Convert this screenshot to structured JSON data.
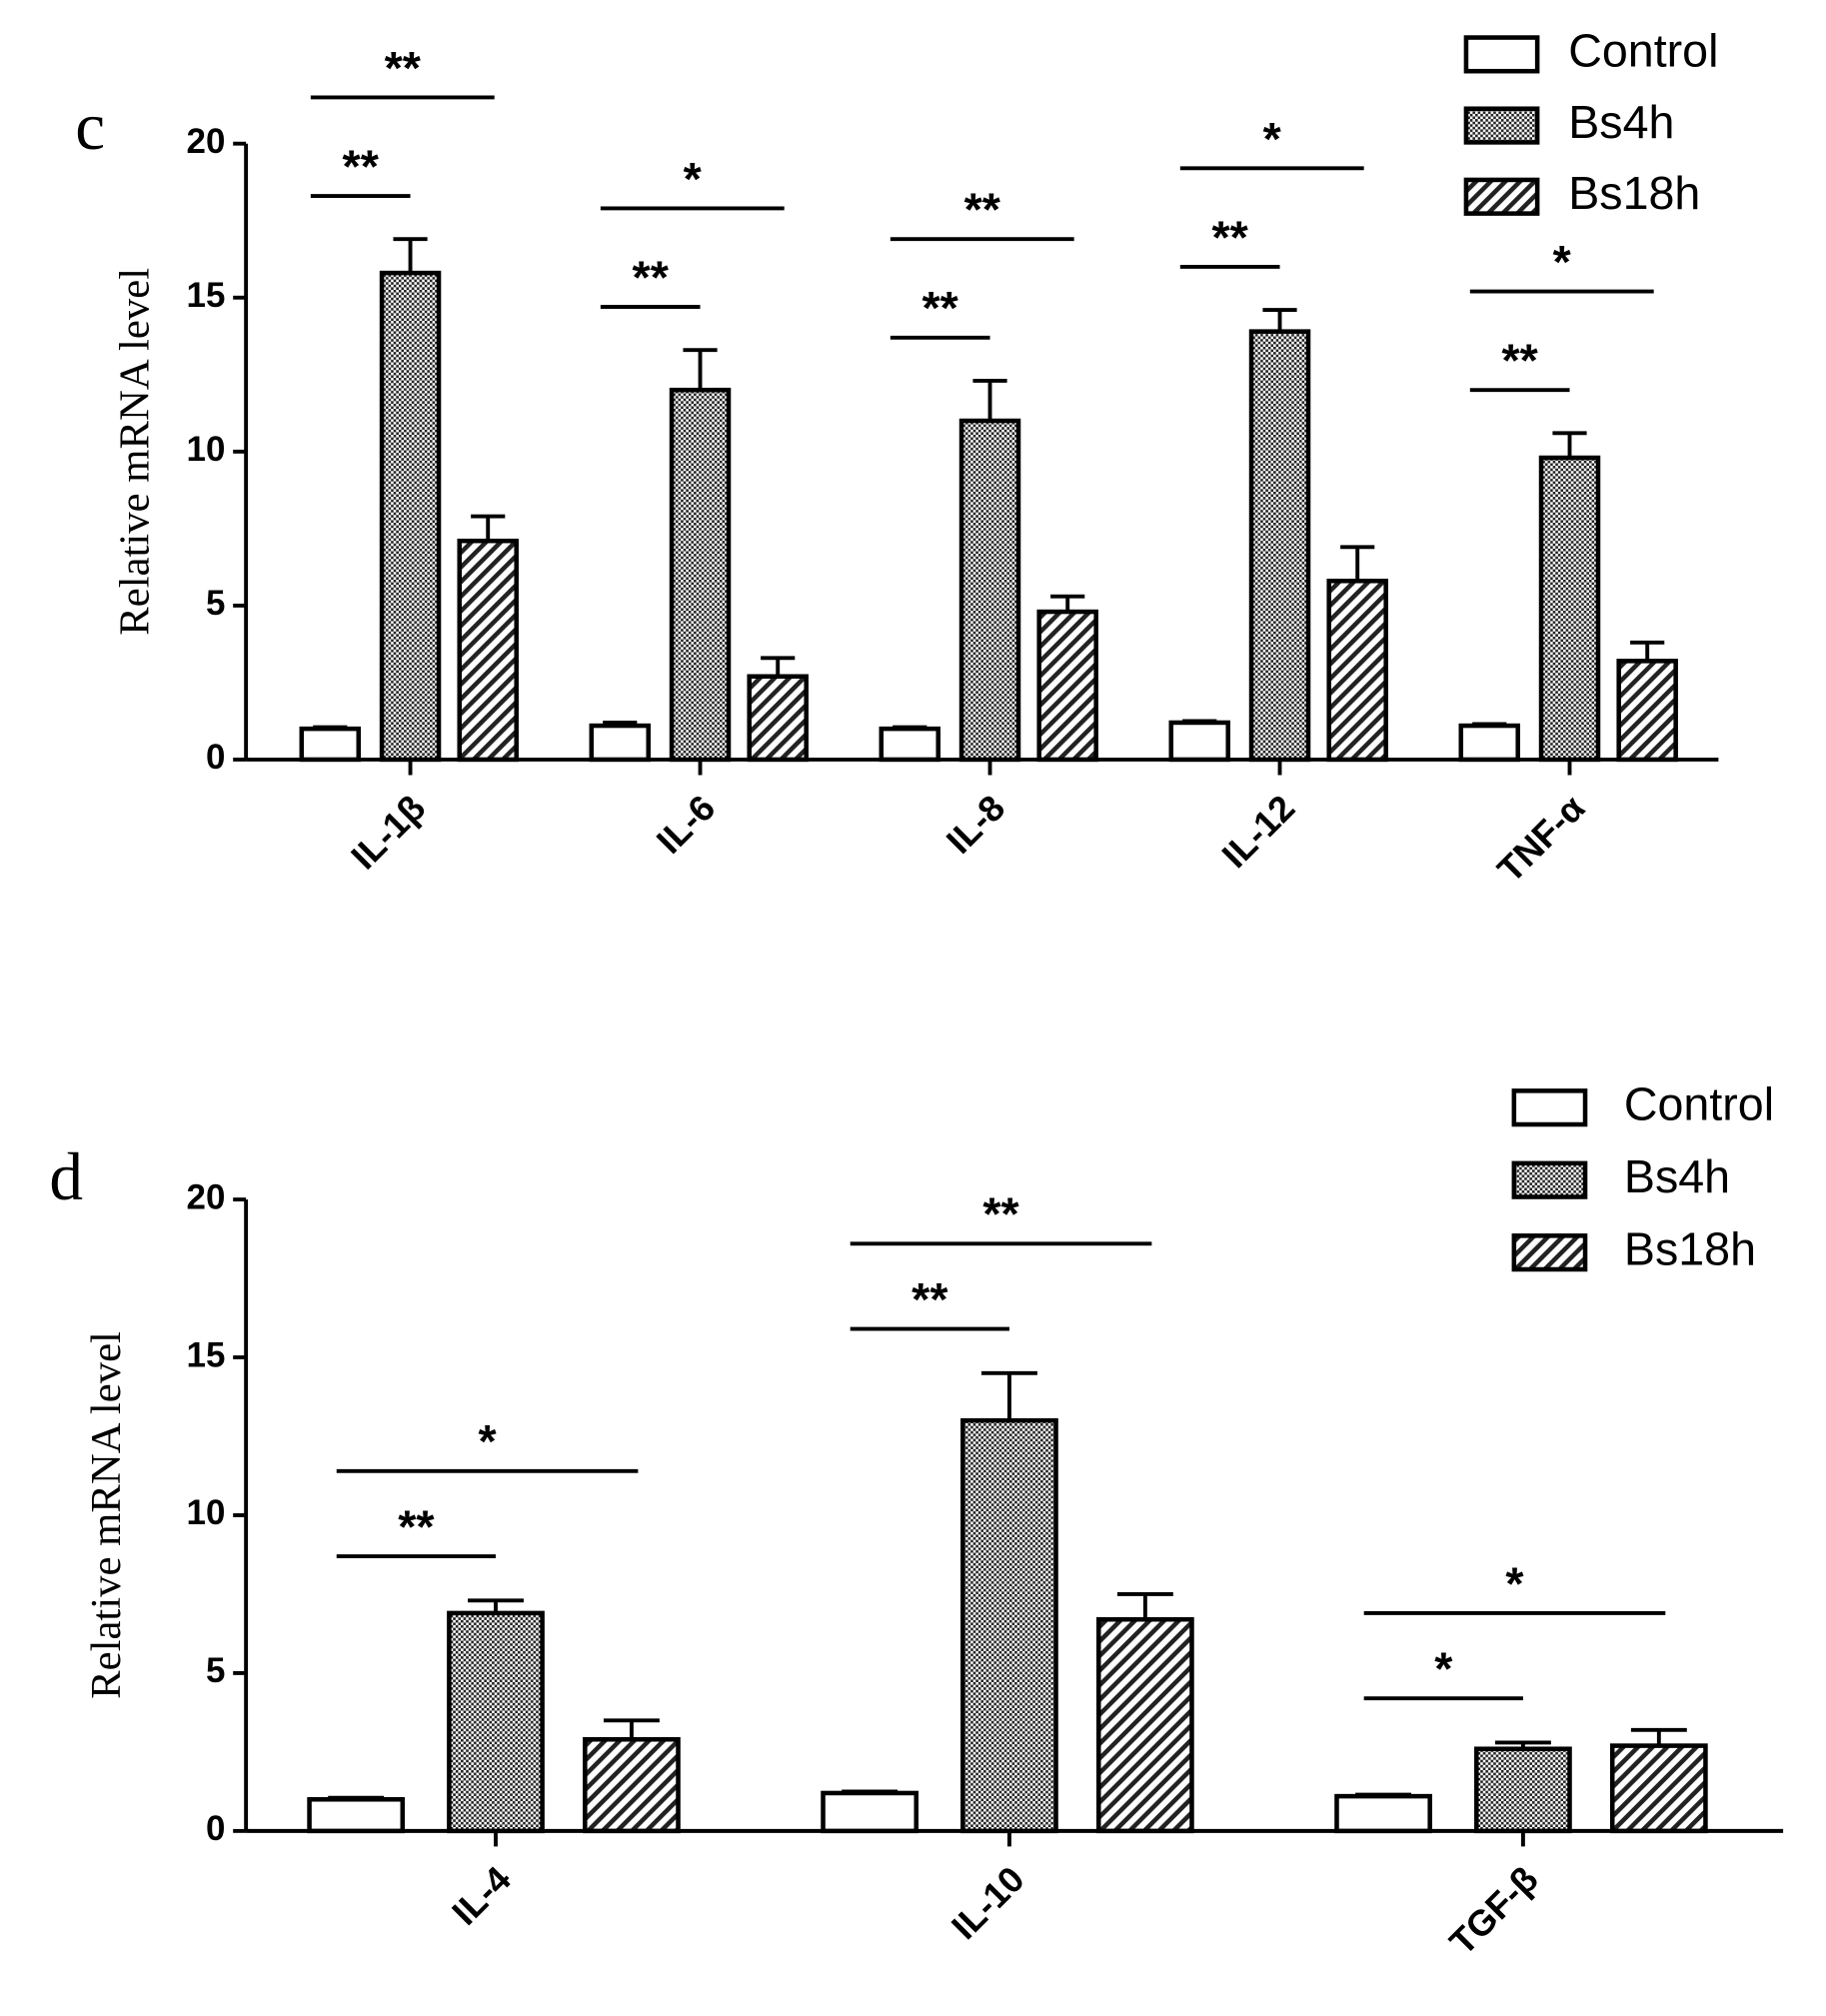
{
  "chart_data": [
    {
      "type": "bar",
      "panel": "c",
      "ylabel": "Relative mRNA level",
      "categories": [
        "IL-1β",
        "IL-6",
        "IL-8",
        "IL-12",
        "TNF-α"
      ],
      "series": [
        {
          "name": "Control",
          "color": "#ffffff",
          "pattern": "none",
          "values": [
            1.0,
            1.1,
            1.0,
            1.2,
            1.1
          ],
          "errors": [
            0.05,
            0.1,
            0.05,
            0.05,
            0.05
          ]
        },
        {
          "name": "Bs4h",
          "color": "#222222",
          "pattern": "crosshatch",
          "values": [
            15.8,
            12.0,
            11.0,
            13.9,
            9.8
          ],
          "errors": [
            1.1,
            1.3,
            1.3,
            0.7,
            0.8
          ]
        },
        {
          "name": "Bs18h",
          "color": "#222222",
          "pattern": "diagonal",
          "values": [
            7.1,
            2.7,
            4.8,
            5.8,
            3.2
          ],
          "errors": [
            0.8,
            0.6,
            0.5,
            1.1,
            0.6
          ]
        }
      ],
      "ylim": [
        0,
        20
      ],
      "yticks": [
        0,
        5,
        10,
        15,
        20
      ],
      "legend": "top-right",
      "annotations": [
        {
          "text": "**",
          "category": "IL-1β",
          "between": [
            "Control",
            "Bs4h"
          ]
        },
        {
          "text": "**",
          "category": "IL-1β",
          "between": [
            "Control",
            "Bs18h"
          ]
        },
        {
          "text": "**",
          "category": "IL-6",
          "between": [
            "Control",
            "Bs4h"
          ]
        },
        {
          "text": "*",
          "category": "IL-6",
          "between": [
            "Control",
            "Bs18h"
          ]
        },
        {
          "text": "**",
          "category": "IL-8",
          "between": [
            "Control",
            "Bs4h"
          ]
        },
        {
          "text": "**",
          "category": "IL-8",
          "between": [
            "Control",
            "Bs18h"
          ]
        },
        {
          "text": "**",
          "category": "IL-12",
          "between": [
            "Control",
            "Bs4h"
          ]
        },
        {
          "text": "*",
          "category": "IL-12",
          "between": [
            "Control",
            "Bs18h"
          ]
        },
        {
          "text": "**",
          "category": "TNF-α",
          "between": [
            "Control",
            "Bs4h"
          ]
        },
        {
          "text": "*",
          "category": "TNF-α",
          "between": [
            "Control",
            "Bs18h"
          ]
        }
      ]
    },
    {
      "type": "bar",
      "panel": "d",
      "ylabel": "Relative mRNA level",
      "categories": [
        "IL-4",
        "IL-10",
        "TGF-β"
      ],
      "series": [
        {
          "name": "Control",
          "color": "#ffffff",
          "pattern": "none",
          "values": [
            1.0,
            1.2,
            1.1
          ],
          "errors": [
            0.05,
            0.05,
            0.05
          ]
        },
        {
          "name": "Bs4h",
          "color": "#222222",
          "pattern": "crosshatch",
          "values": [
            6.9,
            13.0,
            2.6
          ],
          "errors": [
            0.4,
            1.5,
            0.2
          ]
        },
        {
          "name": "Bs18h",
          "color": "#222222",
          "pattern": "diagonal",
          "values": [
            2.9,
            6.7,
            2.7
          ],
          "errors": [
            0.6,
            0.8,
            0.5
          ]
        }
      ],
      "ylim": [
        0,
        20
      ],
      "yticks": [
        0,
        5,
        10,
        15,
        20
      ],
      "legend": "top-right",
      "annotations": [
        {
          "text": "**",
          "category": "IL-4",
          "between": [
            "Control",
            "Bs4h"
          ]
        },
        {
          "text": "*",
          "category": "IL-4",
          "between": [
            "Control",
            "Bs18h"
          ]
        },
        {
          "text": "**",
          "category": "IL-10",
          "between": [
            "Control",
            "Bs4h"
          ]
        },
        {
          "text": "**",
          "category": "IL-10",
          "between": [
            "Control",
            "Bs18h"
          ]
        },
        {
          "text": "*",
          "category": "TGF-β",
          "between": [
            "Control",
            "Bs4h"
          ]
        },
        {
          "text": "*",
          "category": "TGF-β",
          "between": [
            "Control",
            "Bs18h"
          ]
        }
      ]
    }
  ]
}
